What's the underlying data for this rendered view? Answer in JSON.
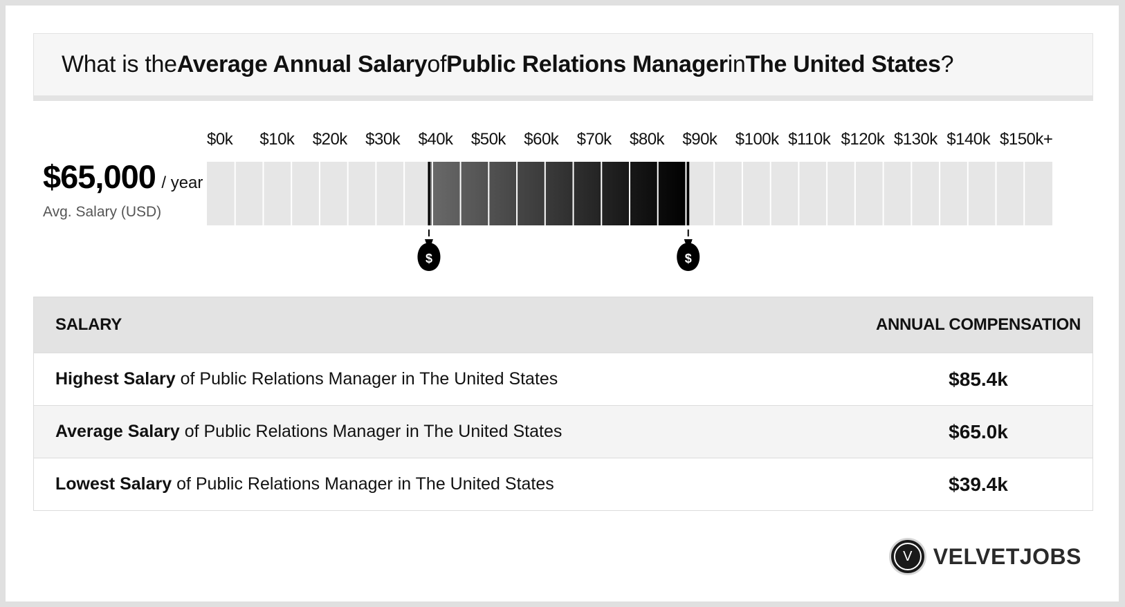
{
  "question": {
    "p1": "What is the ",
    "b1": "Average Annual Salary",
    "p2": " of ",
    "b2": "Public Relations Manager",
    "p3": " in ",
    "b3": "The United States",
    "p4": "?"
  },
  "average": {
    "value": "$65,000",
    "unit": "/ year",
    "label": "Avg. Salary (USD)"
  },
  "chart_data": {
    "type": "bar",
    "title": "",
    "x_tick_labels": [
      "$0k",
      "$10k",
      "$20k",
      "$30k",
      "$40k",
      "$50k",
      "$60k",
      "$70k",
      "$80k",
      "$90k",
      "$100k",
      "$110k",
      "$120k",
      "$130k",
      "$140k",
      "$150k+"
    ],
    "xlim": [
      0,
      150000
    ],
    "range": {
      "low": 39400,
      "high": 85400,
      "average": 65000
    },
    "markers": [
      {
        "value": 39400,
        "icon": "money-bag-icon",
        "glyph": "$"
      },
      {
        "value": 85400,
        "icon": "money-bag-icon",
        "glyph": "$"
      }
    ],
    "colors": {
      "track": "#e6e6e6",
      "range_start": "#6a6a6a",
      "range_end": "#000000"
    }
  },
  "table": {
    "header_left": "SALARY",
    "header_right": "ANNUAL COMPENSATION",
    "rows": [
      {
        "bold": "Highest Salary",
        "rest": " of Public Relations Manager in The United States",
        "value": "$85.4k"
      },
      {
        "bold": "Average Salary",
        "rest": " of Public Relations Manager in The United States",
        "value": "$65.0k"
      },
      {
        "bold": "Lowest Salary",
        "rest": " of Public Relations Manager in The United States",
        "value": "$39.4k"
      }
    ]
  },
  "brand": {
    "logo_letter": "V",
    "name": "VELVETJOBS"
  }
}
